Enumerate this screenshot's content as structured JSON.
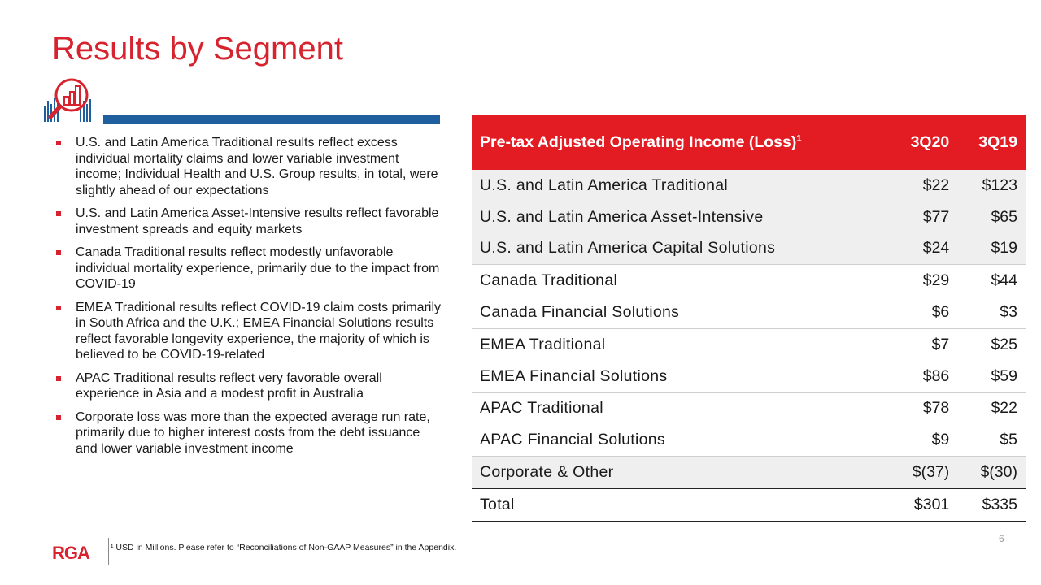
{
  "slide": {
    "title": "Results by Segment",
    "page_number": "6",
    "logo_text": "RGA",
    "footnote": "¹ USD in Millions. Please refer to “Reconciliations of Non-GAAP Measures” in the Appendix.",
    "accent_color": "#d6232e",
    "rule_color": "#1f5f9e"
  },
  "bullets": [
    "U.S. and Latin America Traditional results reflect excess individual mortality claims and lower variable investment income; Individual Health and U.S. Group results, in total, were slightly ahead of our expectations",
    "U.S. and Latin America Asset-Intensive results reflect favorable investment spreads and equity markets",
    "Canada Traditional results reflect modestly unfavorable individual mortality experience, primarily due to the impact from COVID-19",
    "EMEA Traditional results reflect COVID-19 claim costs primarily in South Africa and the U.K.; EMEA Financial Solutions results reflect favorable longevity experience, the majority of which is believed to be COVID-19-related",
    "APAC Traditional results reflect very favorable overall experience in Asia and a modest profit in Australia",
    "Corporate loss was more than the expected average run rate, primarily due to higher interest costs from the debt issuance and lower variable investment income"
  ],
  "table": {
    "header": {
      "label": "Pre-tax Adjusted Operating Income (Loss)",
      "label_sup": "1",
      "col1": "3Q20",
      "col2": "3Q19"
    },
    "rows": [
      {
        "label": "U.S. and Latin America Traditional",
        "v1": "$22",
        "v2": "$123"
      },
      {
        "label": "U.S. and Latin America Asset-Intensive",
        "v1": "$77",
        "v2": "$65"
      },
      {
        "label": "U.S. and Latin America Capital Solutions",
        "v1": "$24",
        "v2": "$19"
      },
      {
        "label": "Canada Traditional",
        "v1": "$29",
        "v2": "$44"
      },
      {
        "label": "Canada Financial Solutions",
        "v1": "$6",
        "v2": "$3"
      },
      {
        "label": "EMEA Traditional",
        "v1": "$7",
        "v2": "$25"
      },
      {
        "label": "EMEA Financial Solutions",
        "v1": "$86",
        "v2": "$59"
      },
      {
        "label": "APAC Traditional",
        "v1": "$78",
        "v2": "$22"
      },
      {
        "label": "APAC Financial Solutions",
        "v1": "$9",
        "v2": "$5"
      },
      {
        "label": "Corporate & Other",
        "v1": "$(37)",
        "v2": "$(30)"
      },
      {
        "label": "Total",
        "v1": "$301",
        "v2": "$335"
      }
    ]
  },
  "icons": {
    "header_icon": "magnifier-bar-chart-icon"
  }
}
